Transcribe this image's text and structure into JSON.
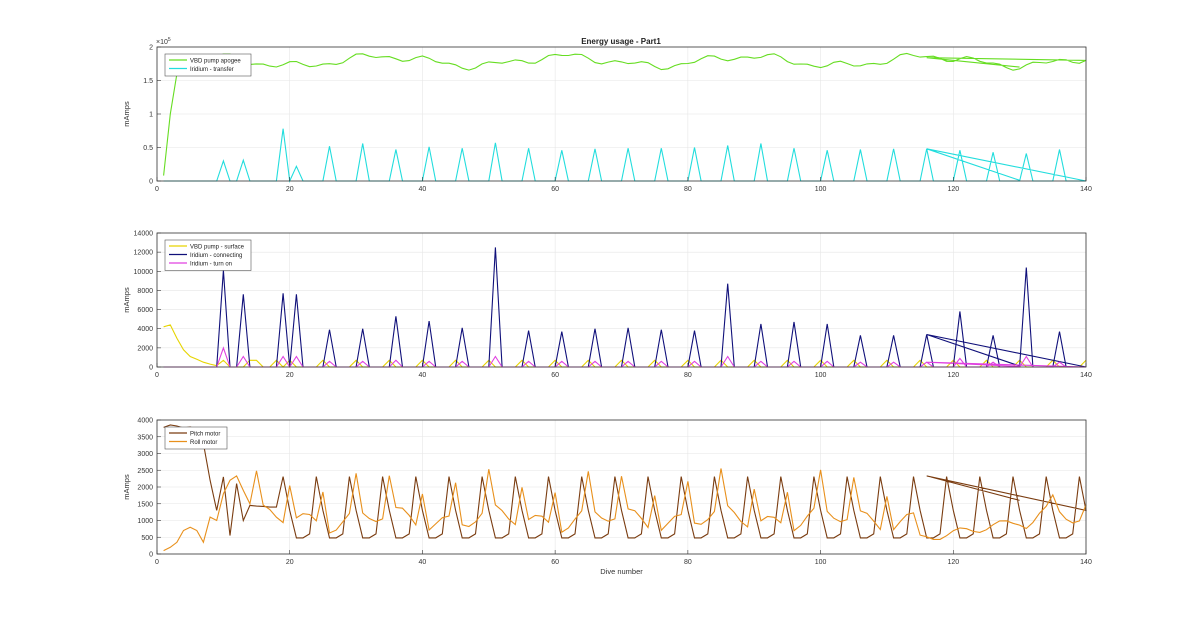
{
  "figure": {
    "title": "Energy usage - Part1",
    "exponent_label": "×10",
    "exponent_power": "5"
  },
  "chart_data": [
    {
      "type": "line",
      "title": "Energy usage - Part1",
      "xlabel": "",
      "ylabel": "mAmps",
      "xlim": [
        0,
        140
      ],
      "ylim": [
        0,
        200000
      ],
      "xticks": [
        0,
        20,
        40,
        60,
        80,
        100,
        120,
        140
      ],
      "xtick_labels": [
        "0",
        "20",
        "40",
        "60",
        "80",
        "100",
        "120",
        "140"
      ],
      "yticks": [
        0,
        50000,
        100000,
        150000,
        200000
      ],
      "ytick_labels": [
        "0",
        "0.5",
        "1",
        "1.5",
        "2"
      ],
      "grid": true,
      "legend": "top-left",
      "series": [
        {
          "name": "VBD pump apogee",
          "color": "#66dd22",
          "kind": "vbd_apogee"
        },
        {
          "name": "Iridium - transfer",
          "color": "#22dddd",
          "kind": "ir_transfer"
        }
      ]
    },
    {
      "type": "line",
      "xlabel": "",
      "ylabel": "mAmps",
      "xlim": [
        0,
        140
      ],
      "ylim": [
        0,
        14000
      ],
      "xticks": [
        0,
        20,
        40,
        60,
        80,
        100,
        120,
        140
      ],
      "xtick_labels": [
        "0",
        "20",
        "40",
        "60",
        "80",
        "100",
        "120",
        "140"
      ],
      "yticks": [
        0,
        2000,
        4000,
        6000,
        8000,
        10000,
        12000,
        14000
      ],
      "ytick_labels": [
        "0",
        "2000",
        "4000",
        "6000",
        "8000",
        "10000",
        "12000",
        "14000"
      ],
      "grid": true,
      "legend": "top-left",
      "series": [
        {
          "name": "VBD pump - surface",
          "color": "#e6d400",
          "kind": "vbd_surface"
        },
        {
          "name": "Iridium - connecting",
          "color": "#10107a",
          "kind": "ir_connect"
        },
        {
          "name": "Iridium - turn on",
          "color": "#e040e0",
          "kind": "ir_on"
        }
      ]
    },
    {
      "type": "line",
      "xlabel": "Dive number",
      "ylabel": "mAmps",
      "xlim": [
        0,
        140
      ],
      "ylim": [
        0,
        4000
      ],
      "xticks": [
        0,
        20,
        40,
        60,
        80,
        100,
        120,
        140
      ],
      "xtick_labels": [
        "0",
        "20",
        "40",
        "60",
        "80",
        "100",
        "120",
        "140"
      ],
      "yticks": [
        0,
        500,
        1000,
        1500,
        2000,
        2500,
        3000,
        3500,
        4000
      ],
      "ytick_labels": [
        "0",
        "500",
        "1000",
        "1500",
        "2000",
        "2500",
        "3000",
        "3500",
        "4000"
      ],
      "grid": true,
      "legend": "top-left",
      "series": [
        {
          "name": "Pitch motor",
          "color": "#7a3c10",
          "kind": "pitch"
        },
        {
          "name": "Roll motor",
          "color": "#e8901c",
          "kind": "roll"
        }
      ]
    }
  ]
}
